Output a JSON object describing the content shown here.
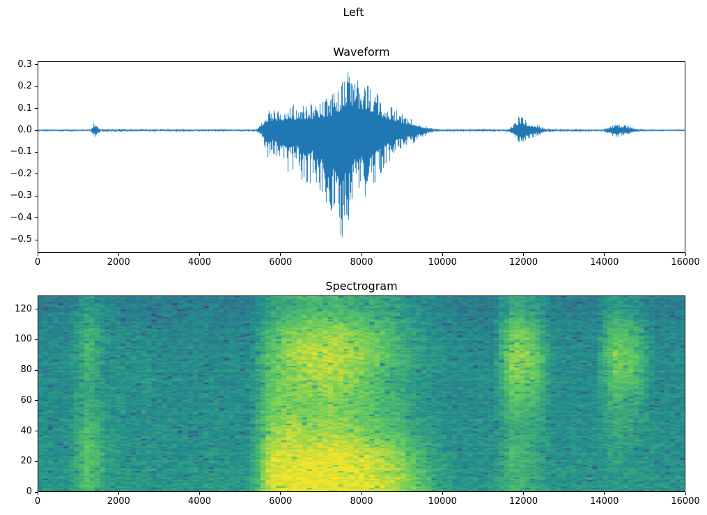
{
  "figure": {
    "suptitle": "Left",
    "background": "#ffffff",
    "axes_color": "#000000",
    "text_color": "#000000"
  },
  "chart_data": [
    {
      "id": "waveform",
      "type": "line",
      "title": "Waveform",
      "xlabel": "",
      "ylabel": "",
      "line_color": "#1f77b4",
      "xlim": [
        0,
        16000
      ],
      "ylim": [
        -0.56,
        0.315
      ],
      "grid": false,
      "legend": false,
      "xticks": {
        "values": [
          0,
          2000,
          4000,
          6000,
          8000,
          10000,
          12000,
          14000,
          16000
        ],
        "labels": [
          "0",
          "2000",
          "4000",
          "6000",
          "8000",
          "10000",
          "12000",
          "14000",
          "16000"
        ]
      },
      "yticks": {
        "values": [
          0.3,
          0.2,
          0.1,
          0.0,
          -0.1,
          -0.2,
          -0.3,
          -0.4,
          -0.5
        ],
        "labels": [
          "0.3",
          "0.2",
          "0.1",
          "0.0",
          "−0.1",
          "−0.2",
          "−0.3",
          "−0.4",
          "−0.5"
        ]
      },
      "description": "Audio waveform amplitude envelope vs sample index; points are [x, min_amplitude, max_amplitude]",
      "envelope_points": [
        [
          0,
          -0.005,
          0.005
        ],
        [
          1300,
          -0.005,
          0.005
        ],
        [
          1360,
          -0.02,
          0.02
        ],
        [
          1420,
          -0.04,
          0.048
        ],
        [
          1480,
          -0.02,
          0.02
        ],
        [
          1550,
          -0.007,
          0.007
        ],
        [
          2600,
          -0.006,
          0.006
        ],
        [
          5400,
          -0.006,
          0.006
        ],
        [
          5550,
          -0.04,
          0.05
        ],
        [
          5650,
          -0.13,
          0.09
        ],
        [
          5800,
          -0.11,
          0.1
        ],
        [
          6000,
          -0.15,
          0.11
        ],
        [
          6200,
          -0.2,
          0.12
        ],
        [
          6400,
          -0.17,
          0.12
        ],
        [
          6600,
          -0.27,
          0.13
        ],
        [
          6800,
          -0.23,
          0.13
        ],
        [
          7000,
          -0.31,
          0.15
        ],
        [
          7200,
          -0.38,
          0.16
        ],
        [
          7400,
          -0.5,
          0.18
        ],
        [
          7550,
          -0.52,
          0.27
        ],
        [
          7700,
          -0.42,
          0.28
        ],
        [
          7850,
          -0.32,
          0.24
        ],
        [
          8000,
          -0.3,
          0.22
        ],
        [
          8150,
          -0.34,
          0.24
        ],
        [
          8300,
          -0.26,
          0.18
        ],
        [
          8500,
          -0.19,
          0.15
        ],
        [
          8700,
          -0.14,
          0.12
        ],
        [
          8900,
          -0.1,
          0.09
        ],
        [
          9100,
          -0.07,
          0.07
        ],
        [
          9300,
          -0.06,
          0.05
        ],
        [
          9500,
          -0.035,
          0.03
        ],
        [
          9650,
          -0.015,
          0.015
        ],
        [
          9800,
          -0.008,
          0.008
        ],
        [
          10000,
          -0.006,
          0.006
        ],
        [
          11600,
          -0.006,
          0.006
        ],
        [
          11750,
          -0.025,
          0.025
        ],
        [
          11850,
          -0.065,
          0.06
        ],
        [
          11950,
          -0.075,
          0.07
        ],
        [
          12050,
          -0.055,
          0.05
        ],
        [
          12200,
          -0.035,
          0.04
        ],
        [
          12350,
          -0.025,
          0.025
        ],
        [
          12500,
          -0.012,
          0.012
        ],
        [
          12700,
          -0.007,
          0.007
        ],
        [
          13950,
          -0.005,
          0.005
        ],
        [
          14100,
          -0.018,
          0.018
        ],
        [
          14250,
          -0.032,
          0.03
        ],
        [
          14450,
          -0.028,
          0.028
        ],
        [
          14600,
          -0.02,
          0.02
        ],
        [
          14750,
          -0.009,
          0.009
        ],
        [
          15000,
          -0.005,
          0.005
        ],
        [
          16000,
          -0.004,
          0.004
        ]
      ]
    },
    {
      "id": "spectrogram",
      "type": "heatmap",
      "title": "Spectrogram",
      "xlabel": "",
      "ylabel": "",
      "colormap": "viridis",
      "xlim": [
        0,
        16000
      ],
      "ylim": [
        0,
        129
      ],
      "grid": false,
      "legend": false,
      "xticks": {
        "values": [
          0,
          2000,
          4000,
          6000,
          8000,
          10000,
          12000,
          14000,
          16000
        ],
        "labels": [
          "0",
          "2000",
          "4000",
          "6000",
          "8000",
          "10000",
          "12000",
          "14000",
          "16000"
        ]
      },
      "yticks": {
        "values": [
          0,
          20,
          40,
          60,
          80,
          100,
          120
        ],
        "labels": [
          "0",
          "20",
          "40",
          "60",
          "80",
          "100",
          "120"
        ]
      },
      "time_bin_size": 500,
      "freq_bin_size": 16,
      "description": "Normalized intensity grid (0=dark purple, 1=bright yellow). Rows ordered low frequency (bottom) to high frequency (top); 32 time columns of width 500 samples.",
      "intensity_grid_rows_low_to_high_freq": [
        [
          0.52,
          0.52,
          0.72,
          0.54,
          0.52,
          0.53,
          0.52,
          0.52,
          0.53,
          0.52,
          0.54,
          0.95,
          0.97,
          0.98,
          0.98,
          0.97,
          0.95,
          0.9,
          0.8,
          0.62,
          0.52,
          0.52,
          0.52,
          0.66,
          0.6,
          0.52,
          0.52,
          0.52,
          0.54,
          0.52,
          0.52,
          0.52
        ],
        [
          0.5,
          0.5,
          0.74,
          0.56,
          0.5,
          0.52,
          0.5,
          0.5,
          0.52,
          0.5,
          0.52,
          0.92,
          0.94,
          0.96,
          0.97,
          0.95,
          0.9,
          0.85,
          0.72,
          0.58,
          0.5,
          0.5,
          0.5,
          0.7,
          0.6,
          0.5,
          0.5,
          0.5,
          0.56,
          0.52,
          0.5,
          0.5
        ],
        [
          0.5,
          0.5,
          0.7,
          0.54,
          0.5,
          0.5,
          0.5,
          0.5,
          0.5,
          0.5,
          0.5,
          0.82,
          0.87,
          0.82,
          0.86,
          0.82,
          0.76,
          0.72,
          0.6,
          0.54,
          0.5,
          0.5,
          0.5,
          0.62,
          0.6,
          0.5,
          0.5,
          0.5,
          0.6,
          0.56,
          0.5,
          0.5
        ],
        [
          0.48,
          0.48,
          0.62,
          0.52,
          0.5,
          0.5,
          0.48,
          0.48,
          0.5,
          0.48,
          0.48,
          0.76,
          0.8,
          0.76,
          0.8,
          0.76,
          0.72,
          0.66,
          0.56,
          0.5,
          0.48,
          0.48,
          0.48,
          0.7,
          0.64,
          0.48,
          0.48,
          0.48,
          0.62,
          0.6,
          0.48,
          0.48
        ],
        [
          0.48,
          0.48,
          0.62,
          0.5,
          0.52,
          0.52,
          0.48,
          0.48,
          0.48,
          0.48,
          0.48,
          0.72,
          0.8,
          0.85,
          0.85,
          0.82,
          0.72,
          0.62,
          0.56,
          0.5,
          0.48,
          0.48,
          0.48,
          0.8,
          0.75,
          0.5,
          0.48,
          0.48,
          0.74,
          0.7,
          0.48,
          0.48
        ],
        [
          0.48,
          0.48,
          0.66,
          0.5,
          0.5,
          0.5,
          0.48,
          0.48,
          0.48,
          0.48,
          0.48,
          0.72,
          0.86,
          0.9,
          0.9,
          0.86,
          0.8,
          0.7,
          0.6,
          0.52,
          0.48,
          0.48,
          0.48,
          0.85,
          0.8,
          0.5,
          0.48,
          0.48,
          0.8,
          0.74,
          0.48,
          0.48
        ],
        [
          0.46,
          0.46,
          0.66,
          0.5,
          0.48,
          0.48,
          0.46,
          0.46,
          0.46,
          0.46,
          0.46,
          0.66,
          0.8,
          0.85,
          0.85,
          0.8,
          0.76,
          0.66,
          0.56,
          0.5,
          0.46,
          0.46,
          0.46,
          0.8,
          0.7,
          0.48,
          0.46,
          0.46,
          0.7,
          0.66,
          0.46,
          0.46
        ],
        [
          0.42,
          0.42,
          0.56,
          0.46,
          0.42,
          0.42,
          0.42,
          0.42,
          0.42,
          0.42,
          0.42,
          0.56,
          0.62,
          0.66,
          0.66,
          0.62,
          0.6,
          0.56,
          0.5,
          0.46,
          0.42,
          0.42,
          0.42,
          0.6,
          0.55,
          0.44,
          0.42,
          0.42,
          0.56,
          0.5,
          0.42,
          0.42
        ]
      ]
    }
  ]
}
